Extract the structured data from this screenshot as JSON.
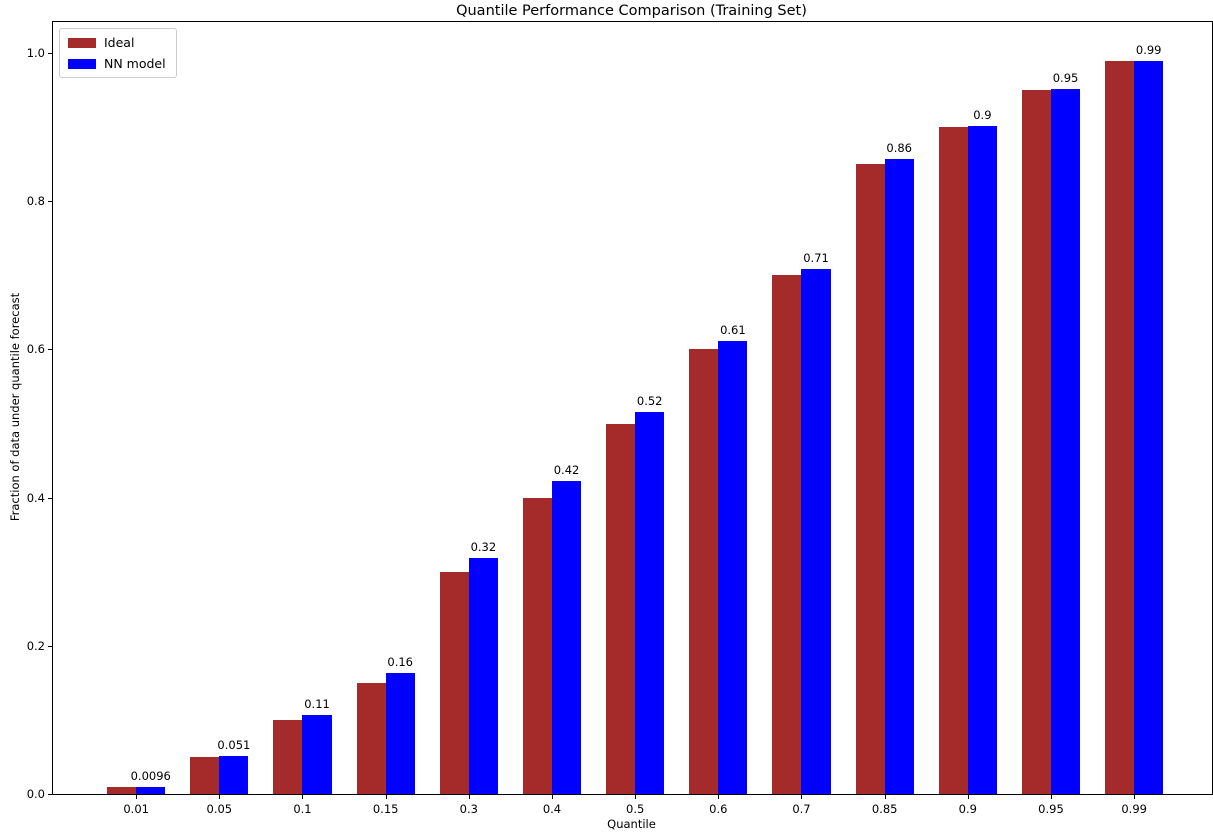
{
  "chart_data": {
    "type": "bar",
    "title": "Quantile Performance Comparison (Training Set)",
    "xlabel": "Quantile",
    "ylabel": "Fraction of data under quantile forecast",
    "categories": [
      "0.01",
      "0.05",
      "0.1",
      "0.15",
      "0.3",
      "0.4",
      "0.5",
      "0.6",
      "0.7",
      "0.85",
      "0.9",
      "0.95",
      "0.99"
    ],
    "series": [
      {
        "name": "Ideal",
        "color": "#a52a2a",
        "values": [
          0.01,
          0.05,
          0.1,
          0.15,
          0.3,
          0.4,
          0.5,
          0.6,
          0.7,
          0.85,
          0.9,
          0.95,
          0.99
        ]
      },
      {
        "name": "NN model",
        "color": "#0000ff",
        "values": [
          0.0096,
          0.051,
          0.107,
          0.163,
          0.318,
          0.422,
          0.516,
          0.611,
          0.709,
          0.857,
          0.902,
          0.951,
          0.99
        ]
      }
    ],
    "bar_labels": [
      "0.0096",
      "0.051",
      "0.11",
      "0.16",
      "0.32",
      "0.42",
      "0.52",
      "0.61",
      "0.71",
      "0.86",
      "0.9",
      "0.95",
      "0.99"
    ],
    "yticks": [
      "0.0",
      "0.2",
      "0.4",
      "0.6",
      "0.8",
      "1.0"
    ],
    "ylim": [
      0,
      1.042
    ],
    "xlim": [
      -1.0,
      12.936
    ],
    "bar_width": 0.35,
    "legend_position": "upper left",
    "grid": false
  }
}
